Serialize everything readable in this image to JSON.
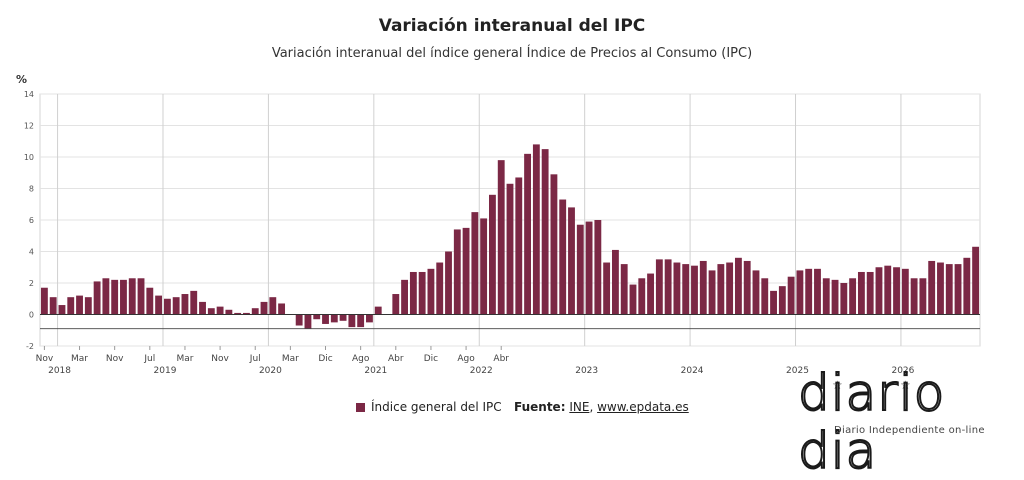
{
  "title": "Variación interanual del IPC",
  "subtitle": "Variación interanual del índice general Índice de Precios al Consumo (IPC)",
  "unit_label": "%",
  "legend": {
    "label": "Índice general del IPC",
    "color": "#7b2845"
  },
  "source": {
    "prefix": "Fuente:",
    "link1": "INE",
    "separator": ",",
    "link2": "www.epdata.es"
  },
  "logo": {
    "text": "diario dia",
    "tagline": "Diario Independiente on-line"
  },
  "chart_data": {
    "type": "bar",
    "title": "Variación interanual del IPC",
    "subtitle": "Variación interanual del índice general Índice de Precios al Consumo (IPC)",
    "ylabel": "%",
    "ylim": [
      -2,
      14
    ],
    "yticks": [
      -2,
      0,
      2,
      4,
      6,
      8,
      10,
      12,
      14
    ],
    "grid": true,
    "legend_position": "bottom",
    "reference_line": -0.9,
    "start_month": "Nov 2017",
    "month_ticks": [
      "Nov",
      "Mar",
      "Nov",
      "Jul",
      "Mar",
      "Nov",
      "Jul",
      "Mar",
      "Dic",
      "Ago",
      "Abr",
      "Dic",
      "Ago",
      "Abr"
    ],
    "year_labels": [
      "2018",
      "2019",
      "2020",
      "2021",
      "2022",
      "2023",
      "2024",
      "2025",
      "2026"
    ],
    "series": [
      {
        "name": "Índice general del IPC",
        "values": [
          1.7,
          1.1,
          0.6,
          1.1,
          1.2,
          1.1,
          2.1,
          2.3,
          2.2,
          2.2,
          2.3,
          2.3,
          1.7,
          1.2,
          1.0,
          1.1,
          1.3,
          1.5,
          0.8,
          0.4,
          0.5,
          0.3,
          0.1,
          0.1,
          0.4,
          0.8,
          1.1,
          0.7,
          0.0,
          -0.7,
          -0.9,
          -0.3,
          -0.6,
          -0.5,
          -0.4,
          -0.8,
          -0.8,
          -0.5,
          0.5,
          0.0,
          1.3,
          2.2,
          2.7,
          2.7,
          2.9,
          3.3,
          4.0,
          5.4,
          5.5,
          6.5,
          6.1,
          7.6,
          9.8,
          8.3,
          8.7,
          10.2,
          10.8,
          10.5,
          8.9,
          7.3,
          6.8,
          5.7,
          5.9,
          6.0,
          3.3,
          4.1,
          3.2,
          1.9,
          2.3,
          2.6,
          3.5,
          3.5,
          3.3,
          3.2,
          3.1,
          3.4,
          2.8,
          3.2,
          3.3,
          3.6,
          3.4,
          2.8,
          2.3,
          1.5,
          1.8,
          2.4,
          2.8,
          2.9,
          2.9,
          2.3,
          2.2,
          2.0,
          2.3,
          2.7,
          2.7,
          3.0,
          3.1,
          3.0,
          2.9,
          2.3,
          2.3,
          3.4,
          3.3,
          3.2,
          3.2,
          3.6,
          4.3
        ]
      }
    ]
  }
}
